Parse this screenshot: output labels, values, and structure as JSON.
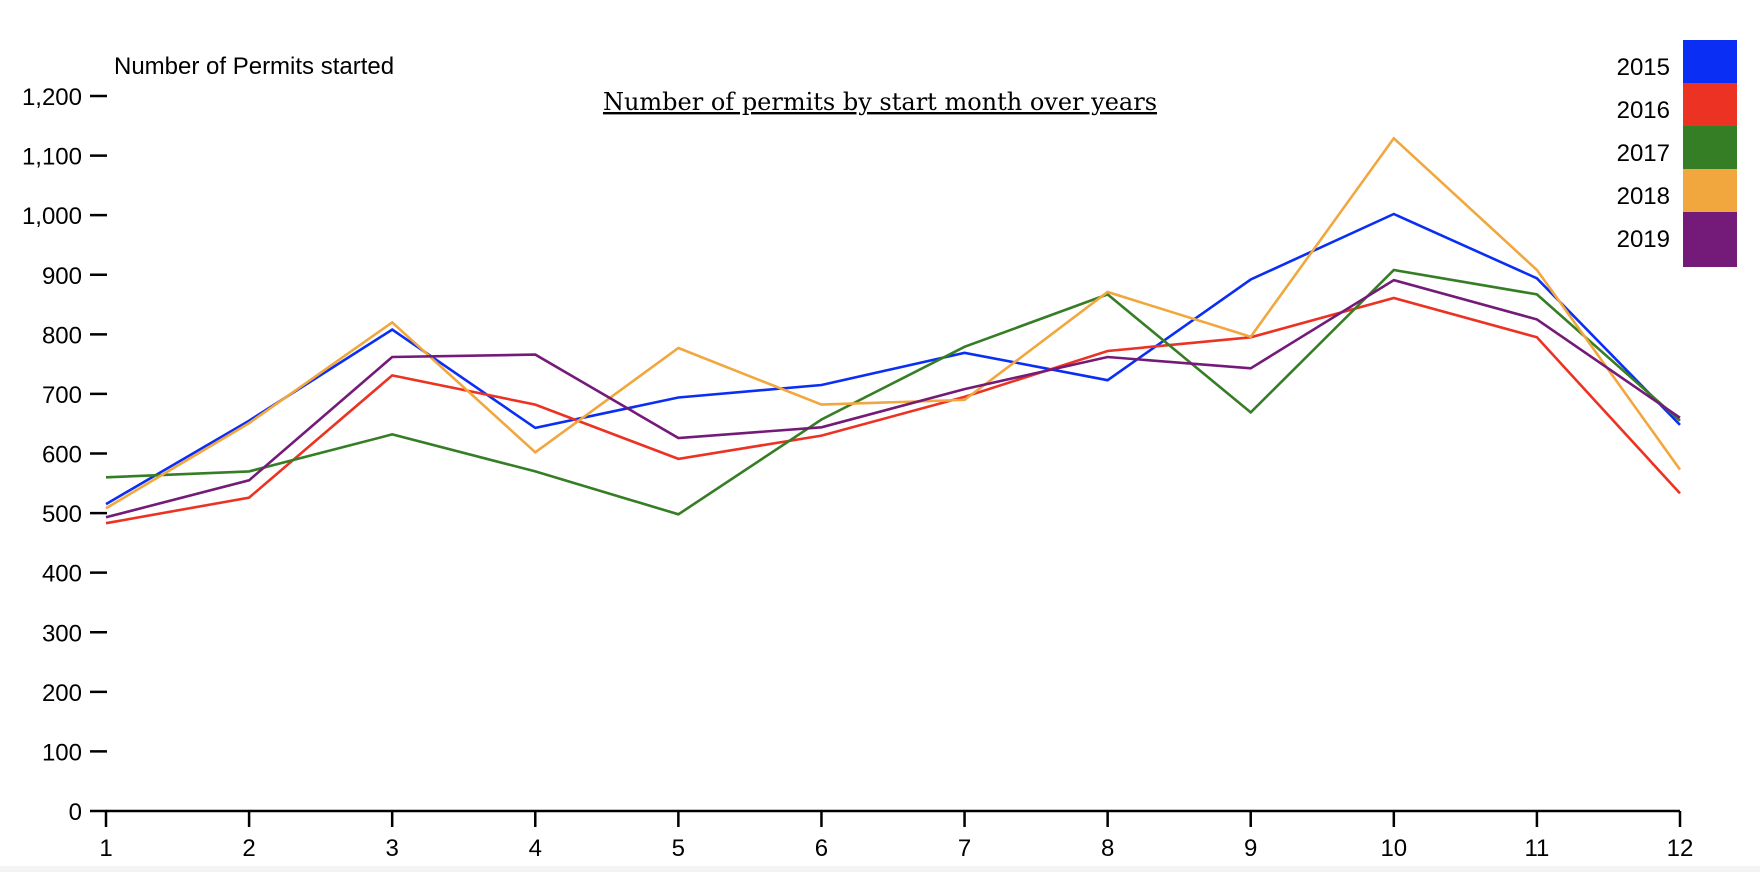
{
  "chart_data": {
    "type": "line",
    "title": "Number of permits by start month over years",
    "ylabel": "Number of Permits started",
    "xlabel": "",
    "categories": [
      "1",
      "2",
      "3",
      "4",
      "5",
      "6",
      "7",
      "8",
      "9",
      "10",
      "11",
      "12"
    ],
    "ylim": [
      0,
      1200
    ],
    "yticks": [
      0,
      100,
      200,
      300,
      400,
      500,
      600,
      700,
      800,
      900,
      1000,
      1100,
      1200
    ],
    "ytick_labels": [
      "0",
      "100",
      "200",
      "300",
      "400",
      "500",
      "600",
      "700",
      "800",
      "900",
      "1,000",
      "1,100",
      "1,200"
    ],
    "grid": false,
    "legend_position": "top-right",
    "series": [
      {
        "name": "2015",
        "color": "#0b2ef5",
        "values": [
          515,
          655,
          808,
          643,
          694,
          715,
          769,
          723,
          892,
          1002,
          894,
          648
        ]
      },
      {
        "name": "2016",
        "color": "#ec3323",
        "values": [
          483,
          526,
          731,
          682,
          591,
          630,
          695,
          772,
          795,
          861,
          795,
          533
        ]
      },
      {
        "name": "2017",
        "color": "#367e25",
        "values": [
          560,
          570,
          632,
          570,
          498,
          657,
          779,
          867,
          669,
          908,
          867,
          655
        ]
      },
      {
        "name": "2018",
        "color": "#f2a73e",
        "values": [
          508,
          651,
          820,
          602,
          777,
          682,
          690,
          871,
          796,
          1129,
          908,
          573
        ]
      },
      {
        "name": "2019",
        "color": "#741a78",
        "values": [
          493,
          555,
          762,
          766,
          626,
          644,
          708,
          762,
          743,
          891,
          825,
          660
        ]
      }
    ]
  }
}
